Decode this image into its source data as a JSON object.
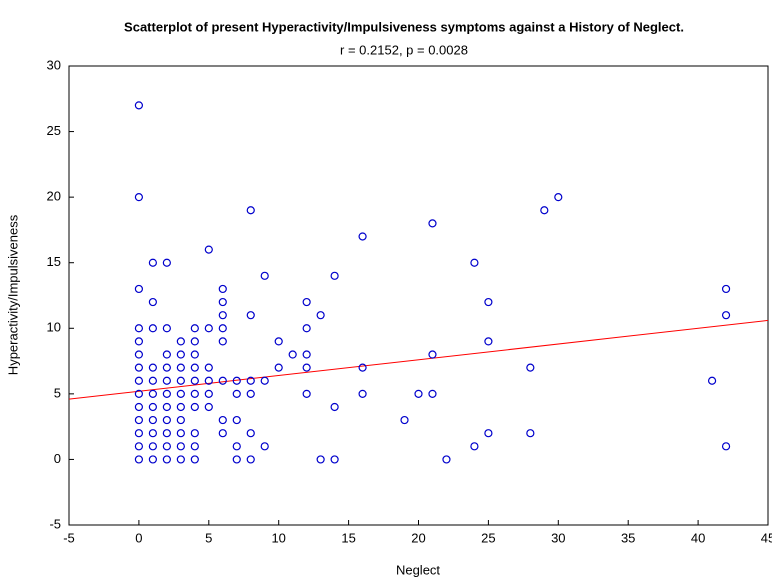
{
  "chart_data": {
    "type": "scatter",
    "title": "Scatterplot of present Hyperactivity/Impulsiveness symptoms against a History of Neglect.",
    "subtitle": "r = 0.2152, p = 0.0028",
    "x_label": "Neglect",
    "y_label": "Hyperactivity/Impulsiveness",
    "color": "#0000cc",
    "x": [
      0,
      0,
      0,
      0,
      0,
      0,
      0,
      0,
      0,
      0,
      0,
      0,
      0,
      0,
      1,
      1,
      1,
      1,
      1,
      1,
      1,
      1,
      1,
      1,
      1,
      2,
      2,
      2,
      2,
      2,
      2,
      2,
      2,
      2,
      2,
      2,
      3,
      3,
      3,
      3,
      3,
      3,
      3,
      3,
      3,
      3,
      4,
      4,
      4,
      4,
      4,
      4,
      4,
      4,
      4,
      4,
      5,
      5,
      5,
      5,
      5,
      5,
      6,
      6,
      6,
      6,
      6,
      6,
      6,
      6,
      7,
      7,
      7,
      7,
      7,
      8,
      8,
      8,
      8,
      8,
      8,
      9,
      9,
      9,
      10,
      10,
      11,
      12,
      12,
      12,
      12,
      12,
      13,
      13,
      14,
      14,
      14,
      16,
      16,
      16,
      19,
      20,
      21,
      21,
      21,
      22,
      24,
      24,
      25,
      25,
      25,
      28,
      28,
      29,
      30,
      41,
      42,
      42,
      42
    ],
    "values": [
      27,
      20,
      13,
      10,
      9,
      8,
      7,
      6,
      5,
      4,
      3,
      2,
      1,
      0,
      15,
      12,
      10,
      7,
      6,
      5,
      4,
      3,
      2,
      1,
      0,
      15,
      10,
      8,
      7,
      6,
      5,
      4,
      3,
      2,
      1,
      0,
      9,
      8,
      7,
      6,
      5,
      4,
      3,
      2,
      1,
      0,
      10,
      9,
      8,
      7,
      6,
      5,
      4,
      2,
      1,
      0,
      16,
      10,
      7,
      6,
      5,
      4,
      13,
      12,
      11,
      10,
      9,
      6,
      3,
      2,
      6,
      5,
      3,
      1,
      0,
      19,
      11,
      6,
      5,
      2,
      0,
      14,
      6,
      1,
      9,
      7,
      8,
      12,
      10,
      8,
      7,
      5,
      11,
      0,
      14,
      4,
      0,
      17,
      7,
      5,
      3,
      5,
      18,
      8,
      5,
      0,
      15,
      1,
      12,
      9,
      2,
      7,
      2,
      19,
      20,
      6,
      13,
      11,
      1
    ],
    "trend": {
      "x": [
        -5,
        45
      ],
      "values": [
        4.6,
        10.6
      ],
      "color": "#ff0000"
    },
    "xlim": [
      -5,
      45
    ],
    "xticks": [
      -5,
      0,
      5,
      10,
      15,
      20,
      25,
      30,
      35,
      40,
      45
    ],
    "ylim": [
      -5,
      30
    ],
    "yticks": [
      -5,
      0,
      5,
      10,
      15,
      20,
      25,
      30
    ]
  }
}
